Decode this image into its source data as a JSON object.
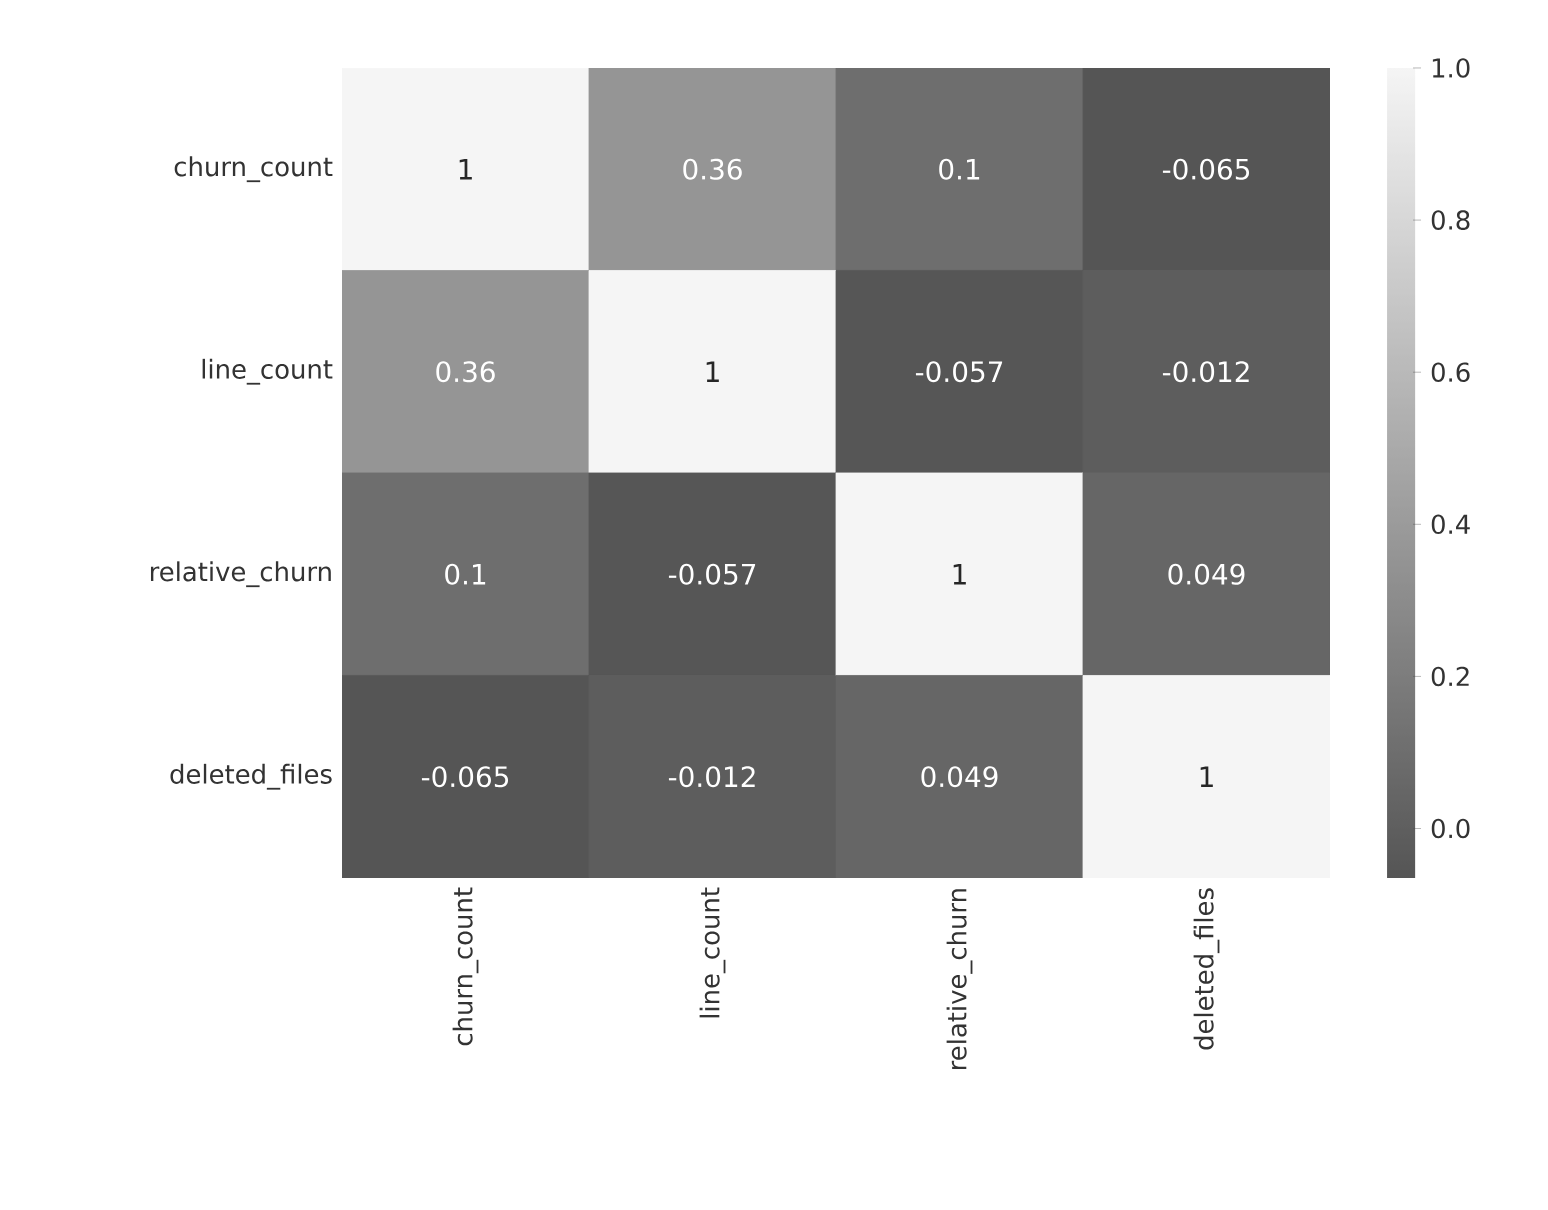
{
  "chart_data": {
    "type": "heatmap",
    "categories": [
      "churn_count",
      "line_count",
      "relative_churn",
      "deleted_files"
    ],
    "y_categories": [
      "churn_count",
      "line_count",
      "relative_churn",
      "deleted_files"
    ],
    "cells": [
      [
        1,
        0.36,
        0.1,
        -0.065
      ],
      [
        0.36,
        1,
        -0.057,
        -0.012
      ],
      [
        0.1,
        -0.057,
        1,
        0.049
      ],
      [
        -0.065,
        -0.012,
        0.049,
        1
      ]
    ],
    "data_labels": true,
    "clim": [
      -0.065,
      1.0
    ],
    "cticks": [
      {
        "value": 0,
        "label": "0.0"
      },
      0.2,
      0.4,
      0.6,
      0.8,
      {
        "value": 1,
        "label": "1.0"
      }
    ]
  }
}
